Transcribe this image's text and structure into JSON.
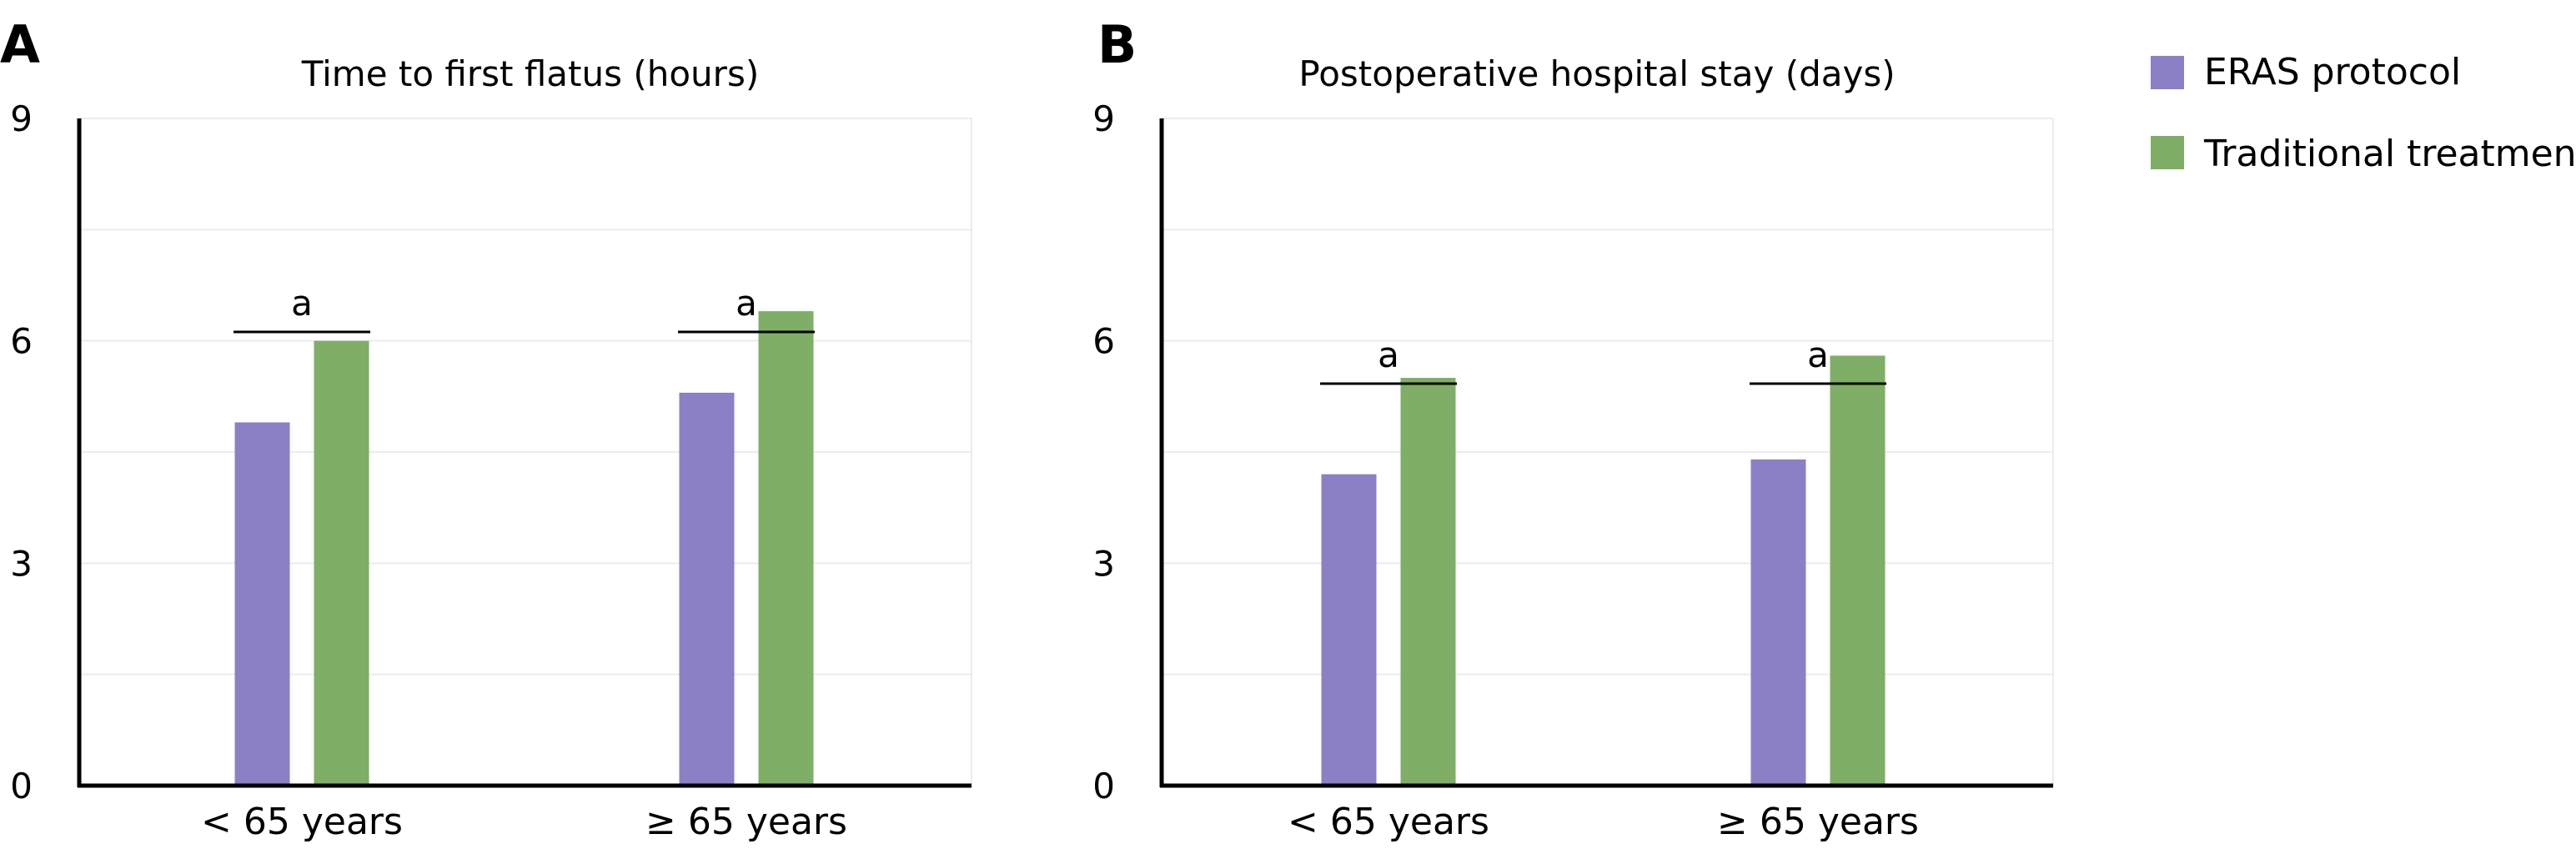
{
  "colors": {
    "eras": "#8b80c6",
    "traditional": "#7fae66",
    "axis": "#000000",
    "grid": "#ececec"
  },
  "legend": [
    {
      "label": "ERAS protocol",
      "color": "#8b80c6"
    },
    {
      "label": "Traditional treatment",
      "color": "#7fae66"
    }
  ],
  "chart_data": [
    {
      "type": "bar",
      "panel": "A",
      "title": "Time to first flatus (hours)",
      "categories": [
        "< 65 years",
        "≥ 65 years"
      ],
      "series": [
        {
          "name": "ERAS protocol",
          "values": [
            4.9,
            5.3
          ]
        },
        {
          "name": "Traditional treatment",
          "values": [
            6.0,
            6.4
          ]
        }
      ],
      "significance": [
        "a",
        "a"
      ],
      "ylim": [
        0,
        9
      ],
      "yticks": [
        "0",
        "3",
        "6",
        "9"
      ],
      "grid": true,
      "legend_position": "right"
    },
    {
      "type": "bar",
      "panel": "B",
      "title": "Postoperative hospital stay (days)",
      "categories": [
        "< 65 years",
        "≥ 65 years"
      ],
      "series": [
        {
          "name": "ERAS protocol",
          "values": [
            4.2,
            4.4
          ]
        },
        {
          "name": "Traditional treatment",
          "values": [
            5.5,
            5.8
          ]
        }
      ],
      "significance": [
        "a",
        "a"
      ],
      "ylim": [
        0,
        9
      ],
      "yticks": [
        "0",
        "3",
        "6",
        "9"
      ],
      "grid": true,
      "legend_position": "right"
    }
  ]
}
